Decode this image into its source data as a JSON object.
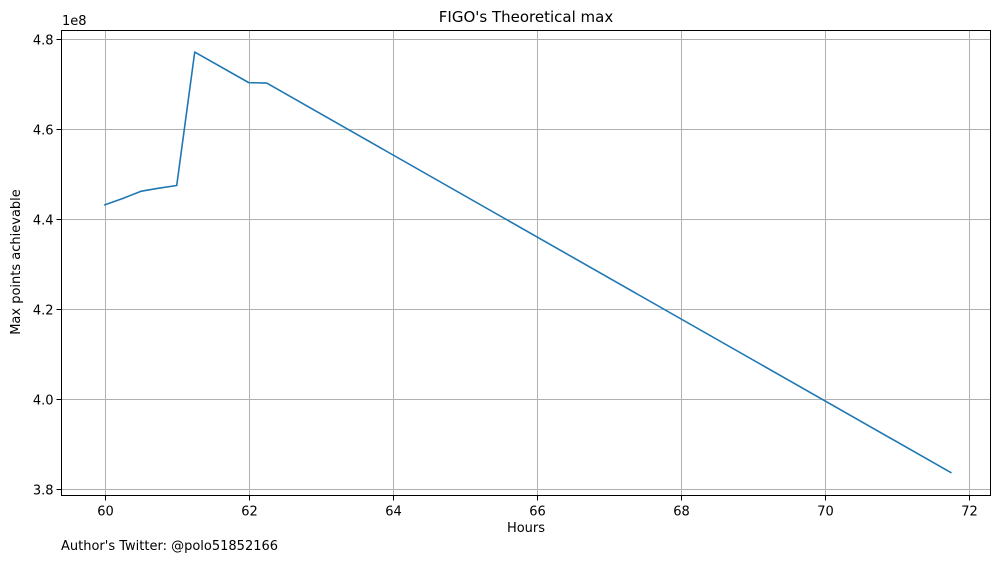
{
  "chart_data": {
    "type": "line",
    "title": "FIGO's Theoretical max",
    "xlabel": "Hours",
    "ylabel": "Max points achievable",
    "y_offset_label": "1e8",
    "xlim": [
      59.4,
      72.3
    ],
    "ylim": [
      3.785,
      4.82
    ],
    "grid": true,
    "x_ticks": [
      60,
      62,
      64,
      66,
      68,
      70,
      72
    ],
    "x_tick_labels": [
      "60",
      "62",
      "64",
      "66",
      "68",
      "70",
      "72"
    ],
    "y_ticks": [
      3.8,
      4.0,
      4.2,
      4.4,
      4.6,
      4.8
    ],
    "y_tick_labels": [
      "3.8",
      "4.0",
      "4.2",
      "4.4",
      "4.6",
      "4.8"
    ],
    "line_color": "#1f77b4",
    "series": [
      {
        "x": [
          60.0,
          60.25,
          60.5,
          60.75,
          61.0,
          61.25,
          62.0,
          62.25,
          71.75
        ],
        "y": [
          4.432,
          4.446,
          4.462,
          4.469,
          4.475,
          4.772,
          4.704,
          4.703,
          3.836
        ]
      }
    ]
  },
  "footnote": "Author's Twitter: @polo51852166"
}
